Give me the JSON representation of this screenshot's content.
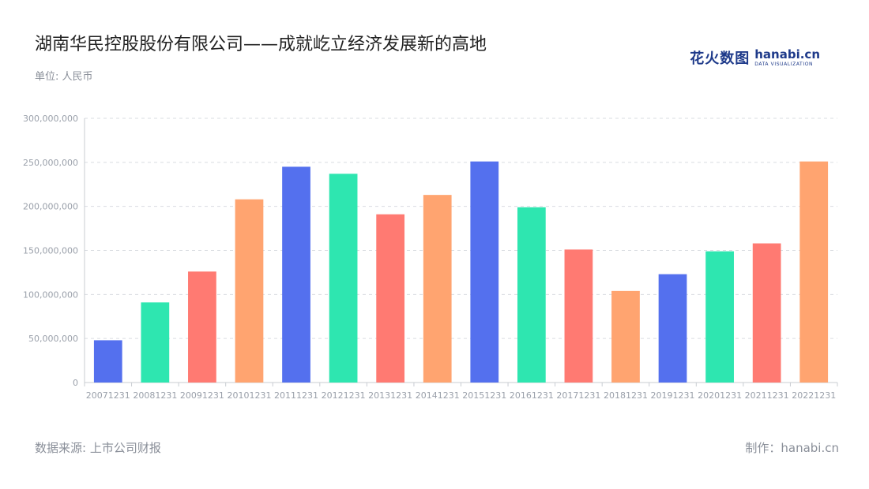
{
  "header": {
    "title": "湖南华民控股股份有限公司——成就屹立经济发展新的高地",
    "unit": "单位: 人民币"
  },
  "logo": {
    "cn": "花火数图",
    "en": "hanabi.cn",
    "sub": "DATA VISUALIZATION"
  },
  "footer": {
    "source": "数据来源: 上市公司财报",
    "credit": "制作：hanabi.cn"
  },
  "colors": [
    "#5470ee",
    "#2ee6b0",
    "#ff7a72",
    "#ffa470"
  ],
  "chart_data": {
    "type": "bar",
    "categories": [
      "20071231",
      "20081231",
      "20091231",
      "20101231",
      "20111231",
      "20121231",
      "20131231",
      "20141231",
      "20151231",
      "20161231",
      "20171231",
      "20181231",
      "20191231",
      "20201231",
      "20211231",
      "20221231"
    ],
    "values": [
      48000000,
      91000000,
      126000000,
      208000000,
      245000000,
      237000000,
      191000000,
      213000000,
      251000000,
      199000000,
      151000000,
      104000000,
      123000000,
      149000000,
      158000000,
      251000000
    ],
    "ylim": [
      0,
      300000000
    ],
    "yticks": [
      "0",
      "50,000,000",
      "100,000,000",
      "150,000,000",
      "200,000,000",
      "250,000,000",
      "300,000,000"
    ],
    "grid": true,
    "title": "湖南华民控股股份有限公司——成就屹立经济发展新的高地"
  }
}
